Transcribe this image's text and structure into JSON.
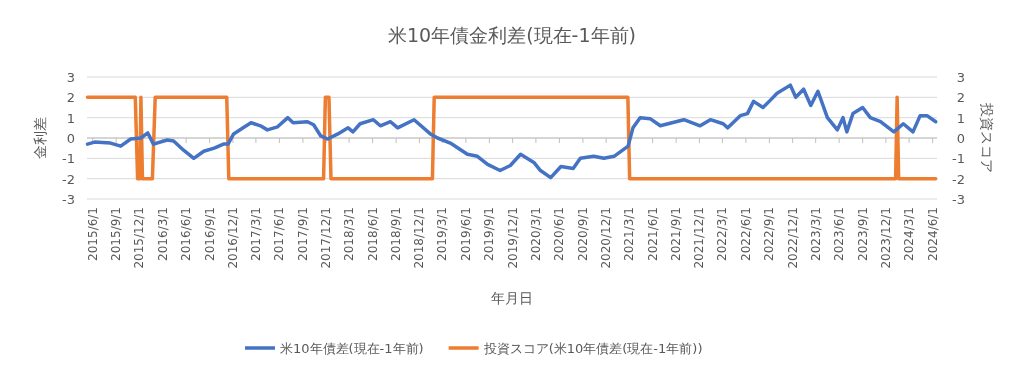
{
  "chart_data": {
    "type": "line",
    "title": "米10年債金利差(現在-1年前)",
    "xlabel": "年月日",
    "ylabel": "金利差",
    "y2label": "投資スコア",
    "xlim": [
      "2015-05-10",
      "2024-06-18"
    ],
    "xticks": [
      {
        "value": "2015-06-01",
        "label": "2015/6/1"
      },
      {
        "value": "2015-09-01",
        "label": "2015/9/1"
      },
      {
        "value": "2015-12-01",
        "label": "2015/12/1"
      },
      {
        "value": "2016-03-01",
        "label": "2016/3/1"
      },
      {
        "value": "2016-06-01",
        "label": "2016/6/1"
      },
      {
        "value": "2016-09-01",
        "label": "2016/9/1"
      },
      {
        "value": "2016-12-01",
        "label": "2016/12/1"
      },
      {
        "value": "2017-03-01",
        "label": "2017/3/1"
      },
      {
        "value": "2017-06-01",
        "label": "2017/6/1"
      },
      {
        "value": "2017-09-01",
        "label": "2017/9/1"
      },
      {
        "value": "2017-12-01",
        "label": "2017/12/1"
      },
      {
        "value": "2018-03-01",
        "label": "2018/3/1"
      },
      {
        "value": "2018-06-01",
        "label": "2018/6/1"
      },
      {
        "value": "2018-09-01",
        "label": "2018/9/1"
      },
      {
        "value": "2018-12-01",
        "label": "2018/12/1"
      },
      {
        "value": "2019-03-01",
        "label": "2019/3/1"
      },
      {
        "value": "2019-06-01",
        "label": "2019/6/1"
      },
      {
        "value": "2019-09-01",
        "label": "2019/9/1"
      },
      {
        "value": "2019-12-01",
        "label": "2019/12/1"
      },
      {
        "value": "2020-03-01",
        "label": "2020/3/1"
      },
      {
        "value": "2020-06-01",
        "label": "2020/6/1"
      },
      {
        "value": "2020-09-01",
        "label": "2020/9/1"
      },
      {
        "value": "2020-12-01",
        "label": "2020/12/1"
      },
      {
        "value": "2021-03-01",
        "label": "2021/3/1"
      },
      {
        "value": "2021-06-01",
        "label": "2021/6/1"
      },
      {
        "value": "2021-09-01",
        "label": "2021/9/1"
      },
      {
        "value": "2021-12-01",
        "label": "2021/12/1"
      },
      {
        "value": "2022-03-01",
        "label": "2022/3/1"
      },
      {
        "value": "2022-06-01",
        "label": "2022/6/1"
      },
      {
        "value": "2022-09-01",
        "label": "2022/9/1"
      },
      {
        "value": "2022-12-01",
        "label": "2022/12/1"
      },
      {
        "value": "2023-03-01",
        "label": "2023/3/1"
      },
      {
        "value": "2023-06-01",
        "label": "2023/6/1"
      },
      {
        "value": "2023-09-01",
        "label": "2023/9/1"
      },
      {
        "value": "2023-12-01",
        "label": "2023/12/1"
      },
      {
        "value": "2024-03-01",
        "label": "2024/3/1"
      },
      {
        "value": "2024-06-01",
        "label": "2024/6/1"
      }
    ],
    "ylim": [
      -3,
      3
    ],
    "yticks": [
      -3,
      -2,
      -1,
      0,
      1,
      2,
      3
    ],
    "y2lim": [
      -3,
      3
    ],
    "y2ticks": [
      -3,
      -2,
      -1,
      0,
      1,
      2,
      3
    ],
    "grid": "y",
    "legend": "bottom",
    "series": [
      {
        "name": "米10年債差(現在-1年前)",
        "color": "#4472c4",
        "x": [
          "2015-05-12",
          "2015-06-09",
          "2015-08-10",
          "2015-09-19",
          "2015-10-28",
          "2015-12-07",
          "2016-01-03",
          "2016-01-25",
          "2016-03-19",
          "2016-04-13",
          "2016-05-22",
          "2016-07-01",
          "2016-08-09",
          "2016-09-19",
          "2016-10-25",
          "2016-11-12",
          "2016-12-04",
          "2017-01-10",
          "2017-02-10",
          "2017-03-19",
          "2017-04-15",
          "2017-05-25",
          "2017-07-04",
          "2017-07-25",
          "2017-09-19",
          "2017-10-13",
          "2017-11-10",
          "2017-12-07",
          "2018-01-16",
          "2018-02-25",
          "2018-03-16",
          "2018-04-13",
          "2018-06-04",
          "2018-07-01",
          "2018-08-10",
          "2018-09-07",
          "2018-11-10",
          "2019-01-13",
          "2019-02-10",
          "2019-04-01",
          "2019-06-07",
          "2019-07-16",
          "2019-08-25",
          "2019-10-13",
          "2019-11-22",
          "2020-01-01",
          "2020-02-22",
          "2020-03-19",
          "2020-04-28",
          "2020-06-07",
          "2020-07-25",
          "2020-08-22",
          "2020-10-13",
          "2020-11-22",
          "2021-01-01",
          "2021-02-25",
          "2021-03-16",
          "2021-04-13",
          "2021-05-22",
          "2021-07-01",
          "2021-10-01",
          "2021-12-04",
          "2022-01-13",
          "2022-03-04",
          "2022-03-22",
          "2022-05-10",
          "2022-06-07",
          "2022-07-01",
          "2022-08-07",
          "2022-09-04",
          "2022-10-01",
          "2022-11-22",
          "2022-12-13",
          "2023-01-13",
          "2023-02-10",
          "2023-03-10",
          "2023-04-16",
          "2023-05-25",
          "2023-06-16",
          "2023-07-01",
          "2023-07-25",
          "2023-09-01",
          "2023-10-01",
          "2023-11-10",
          "2024-01-01",
          "2024-02-07",
          "2024-03-16",
          "2024-04-13",
          "2024-05-10",
          "2024-06-13"
        ],
        "values": [
          -0.3,
          -0.2,
          -0.25,
          -0.4,
          -0.05,
          0,
          0.25,
          -0.3,
          -0.1,
          -0.15,
          -0.6,
          -1.0,
          -0.65,
          -0.5,
          -0.3,
          -0.3,
          0.2,
          0.5,
          0.75,
          0.6,
          0.4,
          0.55,
          1.0,
          0.75,
          0.8,
          0.65,
          0.1,
          -0.05,
          0.2,
          0.5,
          0.3,
          0.7,
          0.9,
          0.6,
          0.8,
          0.5,
          0.9,
          0.2,
          0,
          -0.25,
          -0.8,
          -0.9,
          -1.3,
          -1.6,
          -1.35,
          -0.8,
          -1.2,
          -1.6,
          -1.95,
          -1.4,
          -1.5,
          -1.0,
          -0.9,
          -1.0,
          -0.9,
          -0.4,
          0.5,
          1.0,
          0.95,
          0.6,
          0.9,
          0.6,
          0.9,
          0.7,
          0.5,
          1.1,
          1.2,
          1.8,
          1.5,
          1.85,
          2.2,
          2.6,
          2.0,
          2.4,
          1.6,
          2.3,
          1.0,
          0.4,
          1.0,
          0.3,
          1.2,
          1.5,
          1.0,
          0.8,
          0.3,
          0.7,
          0.3,
          1.1,
          1.1,
          0.8
        ]
      },
      {
        "name": "投資スコア(米10年債差(現在-1年前))",
        "color": "#ed7d31",
        "axis": "y2",
        "x": [
          "2015-05-12",
          "2015-11-15",
          "2015-11-24",
          "2015-12-03",
          "2015-12-07",
          "2015-12-13",
          "2016-01-21",
          "2016-02-01",
          "2016-11-07",
          "2016-11-15",
          "2017-11-21",
          "2017-11-28",
          "2017-12-12",
          "2017-12-20",
          "2019-01-21",
          "2019-01-28",
          "2021-02-24",
          "2021-03-03",
          "2024-01-08",
          "2024-01-14",
          "2024-01-20",
          "2024-06-13"
        ],
        "values": [
          2,
          2,
          -2,
          -2,
          2,
          -2,
          -2,
          2,
          2,
          -2,
          -2,
          2,
          2,
          -2,
          -2,
          2,
          2,
          -2,
          -2,
          2,
          -2,
          -2
        ]
      }
    ]
  }
}
